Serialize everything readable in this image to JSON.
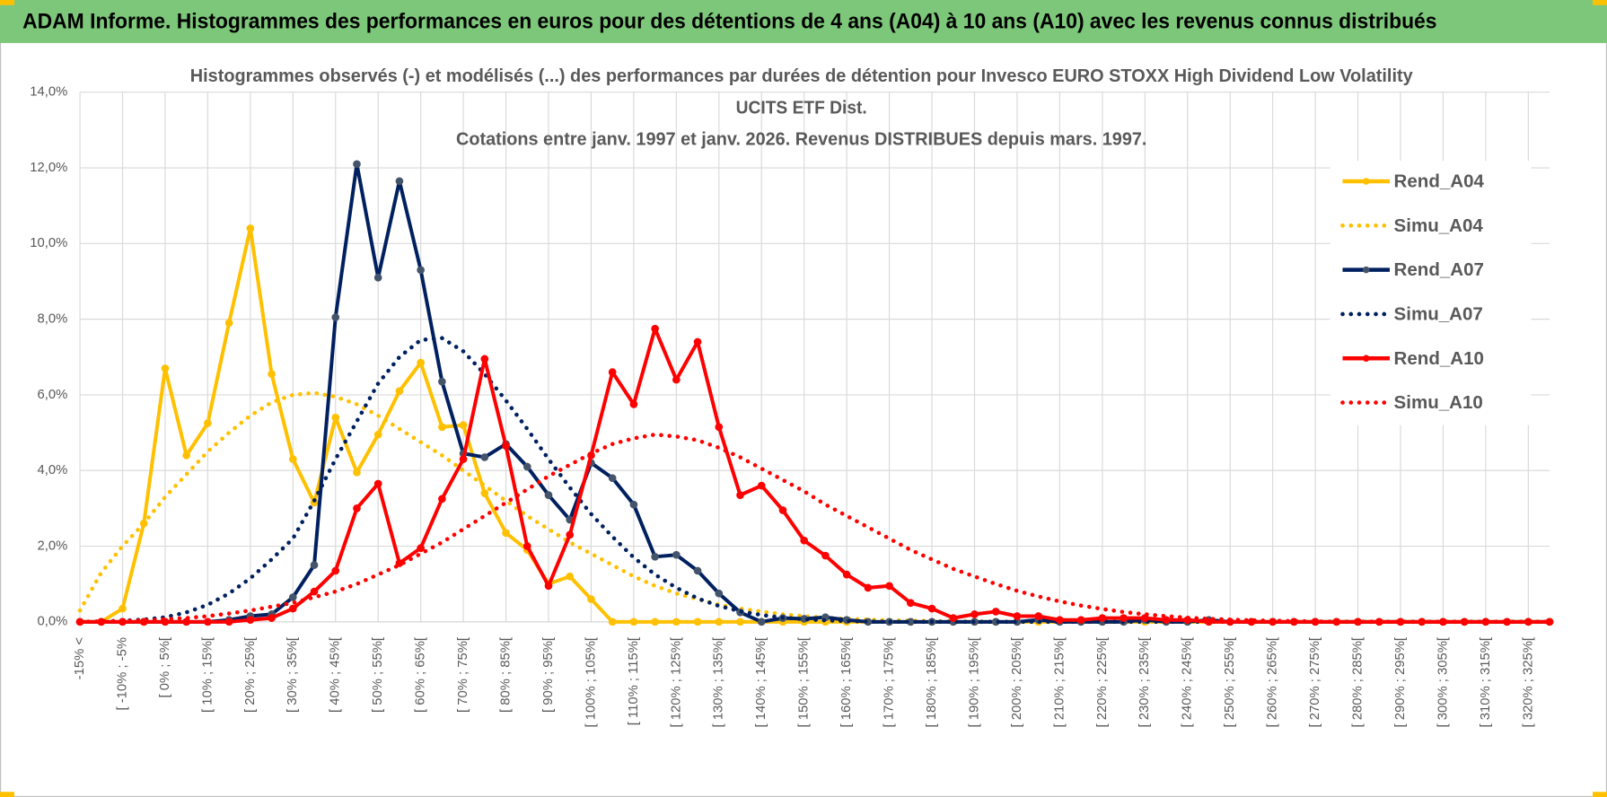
{
  "header": {
    "title": "ADAM Informe. Histogrammes des performances en euros pour des détentions de 4 ans (A04) à 10 ans (A10) avec les revenus connus distribués"
  },
  "chart_data": {
    "type": "line",
    "title": [
      "Histogrammes observés (-) et modélisés (...) des performances par durées de détention pour Invesco EURO STOXX High Dividend Low Volatility",
      "UCITS ETF Dist.",
      "Cotations entre janv. 1997 et janv. 2026. Revenus DISTRIBUES depuis mars. 1997."
    ],
    "categories": [
      "-15% <",
      null,
      "[ -10% ; -5%",
      null,
      "[ 0% ; 5%[",
      null,
      "[ 10% ; 15%[",
      null,
      "[ 20% ; 25%[",
      null,
      "[ 30% ; 35%[",
      null,
      "[ 40% ; 45%[",
      null,
      "[ 50% ; 55%[",
      null,
      "[ 60% ; 65%[",
      null,
      "[ 70% ; 75%[",
      null,
      "[ 80% ; 85%[",
      null,
      "[ 90% ; 95%[",
      null,
      "[ 100% ; 105%[",
      null,
      "[ 110% ; 115%[",
      null,
      "[ 120% ; 125%[",
      null,
      "[ 130% ; 135%[",
      null,
      "[ 140% ; 145%[",
      null,
      "[ 150% ; 155%[",
      null,
      "[ 160% ; 165%[",
      null,
      "[ 170% ; 175%[",
      null,
      "[ 180% ; 185%[",
      null,
      "[ 190% ; 195%[",
      null,
      "[ 200% ; 205%[",
      null,
      "[ 210% ; 215%[",
      null,
      "[ 220% ; 225%[",
      null,
      "[ 230% ; 235%[",
      null,
      "[ 240% ; 245%[",
      null,
      "[ 250% ; 255%[",
      null,
      "[ 260% ; 265%[",
      null,
      "[ 270% ; 275%[",
      null,
      "[ 280% ; 285%[",
      null,
      "[ 290% ; 295%[",
      null,
      "[ 300% ; 305%[",
      null,
      "[ 310% ; 315%[",
      null,
      "[ 320% ; 325%[",
      null
    ],
    "ylim": [
      0,
      14
    ],
    "yticks": [
      {
        "value": 0,
        "label": "0,0%"
      },
      {
        "value": 2,
        "label": "2,0%"
      },
      {
        "value": 4,
        "label": "4,0%"
      },
      {
        "value": 6,
        "label": "6,0%"
      },
      {
        "value": 8,
        "label": "8,0%"
      },
      {
        "value": 10,
        "label": "10,0%"
      },
      {
        "value": 12,
        "label": "12,0%"
      },
      {
        "value": 14,
        "label": "14,0%"
      }
    ],
    "grid": true,
    "legend": "right",
    "series": [
      {
        "name": "Rend_A04",
        "color": "#ffc000",
        "style": "solid",
        "markers": true,
        "marker_color": "#ffc000",
        "values": [
          0,
          0,
          0.35,
          2.6,
          6.7,
          4.4,
          5.25,
          7.9,
          10.4,
          6.55,
          4.3,
          3.15,
          5.4,
          3.95,
          4.95,
          6.1,
          6.85,
          5.15,
          5.2,
          3.4,
          2.35,
          1.9,
          1.0,
          1.2,
          0.6,
          0,
          0,
          0,
          0,
          0,
          0,
          0,
          0,
          0,
          0,
          0,
          0,
          0,
          0,
          0,
          0,
          0,
          0,
          0,
          0,
          0,
          0,
          0,
          0,
          0,
          0,
          0,
          0,
          0,
          0,
          0,
          0,
          0,
          0,
          0,
          0,
          0,
          0,
          0,
          0,
          0,
          0,
          0,
          0,
          0
        ]
      },
      {
        "name": "Simu_A04",
        "color": "#ffc000",
        "style": "dotted",
        "markers": false,
        "values": [
          0.3,
          1.3,
          2.0,
          2.6,
          3.3,
          3.9,
          4.5,
          5.0,
          5.45,
          5.8,
          6.0,
          6.05,
          5.95,
          5.75,
          5.45,
          5.1,
          4.75,
          4.4,
          4.0,
          3.6,
          3.2,
          2.8,
          2.45,
          2.1,
          1.8,
          1.5,
          1.2,
          0.95,
          0.75,
          0.6,
          0.45,
          0.35,
          0.27,
          0.2,
          0.15,
          0.11,
          0.08,
          0.06,
          0.04,
          0.03,
          0.02,
          0.01,
          0,
          0,
          0,
          0,
          0,
          0,
          0,
          0,
          0,
          0,
          0,
          0,
          0,
          0,
          0,
          0,
          0,
          0,
          0,
          0,
          0,
          0,
          0,
          0,
          0,
          0,
          0,
          0
        ]
      },
      {
        "name": "Rend_A07",
        "color": "#002060",
        "style": "solid",
        "markers": true,
        "marker_color": "#44546a",
        "values": [
          0,
          0,
          0,
          0,
          0,
          0,
          0,
          0.05,
          0.15,
          0.2,
          0.65,
          1.5,
          8.05,
          12.1,
          9.1,
          11.65,
          9.3,
          6.35,
          4.45,
          4.35,
          4.7,
          4.1,
          3.35,
          2.7,
          4.2,
          3.8,
          3.1,
          1.72,
          1.77,
          1.35,
          0.75,
          0.25,
          0,
          0.1,
          0.08,
          0.12,
          0.05,
          0,
          0,
          0,
          0,
          0,
          0,
          0,
          0,
          0.05,
          0,
          0,
          0,
          0,
          0.05,
          0,
          0,
          0.05,
          0,
          0,
          0,
          0,
          0,
          0,
          0,
          0,
          0,
          0,
          0,
          0,
          0,
          0,
          0,
          0
        ]
      },
      {
        "name": "Simu_A07",
        "color": "#002060",
        "style": "dotted",
        "markers": false,
        "values": [
          0,
          0.01,
          0.03,
          0.06,
          0.12,
          0.25,
          0.45,
          0.75,
          1.15,
          1.65,
          2.2,
          3.2,
          4.3,
          5.3,
          6.3,
          7.0,
          7.45,
          7.5,
          7.15,
          6.55,
          5.85,
          5.1,
          4.3,
          3.55,
          2.85,
          2.25,
          1.7,
          1.25,
          0.9,
          0.62,
          0.42,
          0.28,
          0.18,
          0.11,
          0.07,
          0.04,
          0.02,
          0.01,
          0,
          0,
          0,
          0,
          0,
          0,
          0,
          0,
          0,
          0,
          0,
          0,
          0,
          0,
          0,
          0,
          0,
          0,
          0,
          0,
          0,
          0,
          0,
          0,
          0,
          0,
          0,
          0,
          0,
          0,
          0,
          0
        ]
      },
      {
        "name": "Rend_A10",
        "color": "#ff0000",
        "style": "solid",
        "markers": true,
        "marker_color": "#ff0000",
        "values": [
          0,
          0,
          0,
          0,
          0,
          0,
          0,
          0,
          0.05,
          0.1,
          0.35,
          0.8,
          1.35,
          3.0,
          3.65,
          1.55,
          1.95,
          3.25,
          4.3,
          6.95,
          4.65,
          2.0,
          0.95,
          2.3,
          4.4,
          6.6,
          5.75,
          7.75,
          6.4,
          7.4,
          5.15,
          3.35,
          3.6,
          2.95,
          2.15,
          1.75,
          1.25,
          0.9,
          0.95,
          0.5,
          0.35,
          0.1,
          0.2,
          0.27,
          0.15,
          0.15,
          0.05,
          0.05,
          0.1,
          0.1,
          0.1,
          0.05,
          0.05,
          0,
          0,
          0,
          0,
          0,
          0,
          0,
          0,
          0,
          0,
          0,
          0,
          0,
          0,
          0,
          0,
          0
        ]
      },
      {
        "name": "Simu_A10",
        "color": "#ff0000",
        "style": "dotted",
        "markers": false,
        "values": [
          0,
          0.01,
          0.02,
          0.04,
          0.07,
          0.1,
          0.15,
          0.22,
          0.3,
          0.4,
          0.5,
          0.65,
          0.8,
          1.0,
          1.25,
          1.5,
          1.8,
          2.1,
          2.45,
          2.8,
          3.15,
          3.5,
          3.85,
          4.15,
          4.45,
          4.7,
          4.85,
          4.95,
          4.9,
          4.8,
          4.6,
          4.35,
          4.05,
          3.75,
          3.45,
          3.1,
          2.8,
          2.5,
          2.2,
          1.9,
          1.65,
          1.4,
          1.2,
          1.0,
          0.82,
          0.67,
          0.54,
          0.43,
          0.34,
          0.26,
          0.2,
          0.15,
          0.11,
          0.08,
          0.06,
          0.04,
          0.03,
          0.02,
          0.01,
          0,
          0,
          0,
          0,
          0,
          0,
          0,
          0,
          0,
          0,
          0
        ]
      }
    ]
  }
}
